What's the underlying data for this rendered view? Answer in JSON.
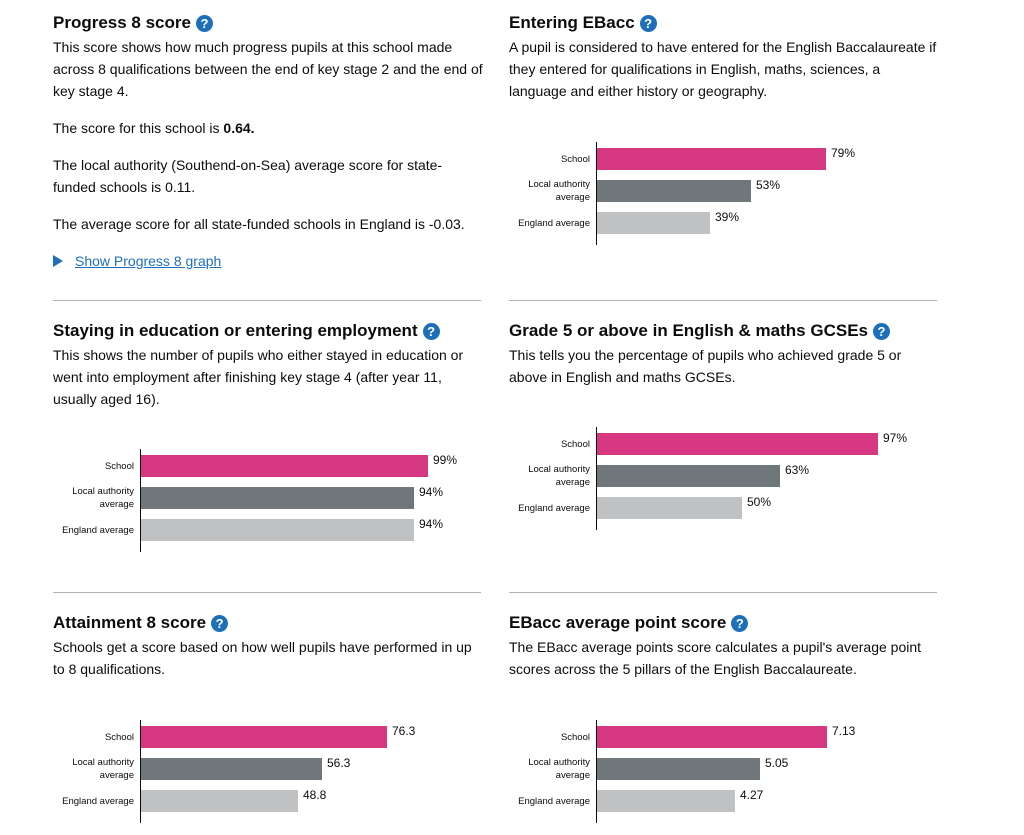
{
  "colors": {
    "school": "#d53880",
    "local_authority": "#6f777b",
    "england": "#bfc1c3",
    "link": "#1d70b8"
  },
  "help_icon_glyph": "?",
  "progress8": {
    "title": "Progress 8 score",
    "description": "This score shows how much progress pupils at this school made across 8 qualifications between the end of key stage 2 and the end of key stage 4.",
    "school_score_prefix": "The score for this school is",
    "school_score_value": "0.64.",
    "local_authority_text": "The local authority (Southend-on-Sea) average score for state-funded schools is 0.11.",
    "england_text": "The average score for all state-funded schools in England is -0.03.",
    "graph_link": "Show Progress 8 graph"
  },
  "ebacc": {
    "title": "Entering EBacc",
    "description": "A pupil is considered to have entered for the English Baccalaureate if they entered for qualifications in English, maths, sciences, a language and either history or geography."
  },
  "staying": {
    "title": "Staying in education or entering employment",
    "description": "This shows the number of pupils who either stayed in education or went into employment after finishing key stage 4 (after year 11, usually aged 16)."
  },
  "grade5": {
    "title": "Grade 5 or above in English & maths GCSEs",
    "description": "This tells you the percentage of pupils who achieved grade 5 or above in English and maths GCSEs."
  },
  "attainment8": {
    "title": "Attainment 8 score",
    "description": "Schools get a score based on how well pupils have performed in up to 8 qualifications."
  },
  "ebacc_aps": {
    "title": "EBacc average point score",
    "description": "The EBacc average points score calculates a pupil's average point scores across the 5 pillars of the English Baccalaureate."
  },
  "chart_data": [
    {
      "id": "ebacc",
      "type": "bar",
      "orientation": "horizontal",
      "categories": [
        "School",
        "Local authority average",
        "England average"
      ],
      "values": [
        79,
        53,
        39
      ],
      "labels": [
        "79%",
        "53%",
        "39%"
      ],
      "xlim": [
        0,
        100
      ]
    },
    {
      "id": "staying",
      "type": "bar",
      "orientation": "horizontal",
      "categories": [
        "School",
        "Local authority average",
        "England average"
      ],
      "values": [
        99,
        94,
        94
      ],
      "labels": [
        "99%",
        "94%",
        "94%"
      ],
      "xlim": [
        0,
        100
      ]
    },
    {
      "id": "grade5",
      "type": "bar",
      "orientation": "horizontal",
      "categories": [
        "School",
        "Local authority average",
        "England average"
      ],
      "values": [
        97,
        63,
        50
      ],
      "labels": [
        "97%",
        "63%",
        "50%"
      ],
      "xlim": [
        0,
        100
      ]
    },
    {
      "id": "attainment8",
      "type": "bar",
      "orientation": "horizontal",
      "categories": [
        "School",
        "Local authority average",
        "England average"
      ],
      "values": [
        76.3,
        56.3,
        48.8
      ],
      "labels": [
        "76.3",
        "56.3",
        "48.8"
      ],
      "xlim": [
        0,
        90
      ]
    },
    {
      "id": "ebacc_aps",
      "type": "bar",
      "orientation": "horizontal",
      "categories": [
        "School",
        "Local authority average",
        "England average"
      ],
      "values": [
        7.13,
        5.05,
        4.27
      ],
      "labels": [
        "7.13",
        "5.05",
        "4.27"
      ],
      "xlim": [
        0,
        9
      ]
    }
  ]
}
